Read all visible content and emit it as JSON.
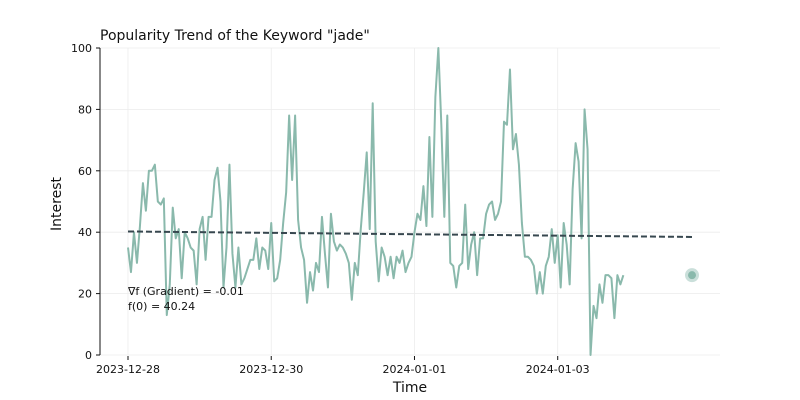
{
  "chart_data": {
    "type": "line",
    "title": "Popularity Trend of the Keyword \"jade\"",
    "xlabel": "Time",
    "ylabel": "Interest",
    "ylim": [
      0,
      100
    ],
    "yticks": [
      0,
      20,
      40,
      60,
      80,
      100
    ],
    "xlim": [
      "2023-12-28T00:00",
      "2024-01-04T21:00"
    ],
    "xticks": [
      {
        "t": "2023-12-28T00:00",
        "label": "2023-12-28"
      },
      {
        "t": "2023-12-30T00:00",
        "label": "2023-12-30"
      },
      {
        "t": "2024-01-01T00:00",
        "label": "2024-01-01"
      },
      {
        "t": "2024-01-03T00:00",
        "label": "2024-01-03"
      }
    ],
    "grid": true,
    "start": "2023-12-28T00:00",
    "step_hours": 1,
    "series": [
      {
        "values": [
          35,
          27,
          40,
          30,
          42,
          56,
          47,
          60,
          60,
          62,
          50,
          49,
          51,
          13,
          23,
          48,
          38,
          41,
          25,
          40,
          38,
          35,
          34,
          23,
          41,
          45,
          31,
          45,
          45,
          57,
          61,
          50,
          22,
          35,
          62,
          33,
          22,
          35,
          23,
          25,
          28,
          31,
          31,
          38,
          28,
          35,
          34,
          28,
          43,
          24,
          25,
          31,
          43,
          53,
          78,
          57,
          78,
          44,
          35,
          31,
          17,
          27,
          21,
          30,
          27,
          45,
          33,
          22,
          46,
          37,
          34,
          36,
          35,
          33,
          30,
          18,
          30,
          26,
          41,
          53,
          66,
          41,
          82,
          37,
          24,
          35,
          32,
          26,
          32,
          25,
          32,
          30,
          34,
          27,
          30,
          32,
          40,
          46,
          44,
          55,
          42,
          71,
          45,
          84,
          100,
          75,
          45,
          78,
          30,
          29,
          22,
          29,
          30,
          49,
          28,
          36,
          40,
          26,
          38,
          38,
          46,
          49,
          50,
          44,
          46,
          50,
          76,
          75,
          93,
          67,
          72,
          62,
          43,
          32,
          32,
          31,
          29,
          20,
          27,
          20,
          29,
          32,
          41,
          30,
          39,
          22,
          43,
          36,
          23,
          54,
          69,
          63,
          38,
          80,
          67,
          0,
          16,
          12,
          23,
          17,
          26,
          26,
          25,
          12,
          26,
          23,
          26
        ],
        "color": "#8ab9ac"
      },
      {
        "type": "trend",
        "x": [
          "2023-12-28T00:00",
          "2024-01-04T21:00"
        ],
        "values": [
          40.24,
          38.45
        ],
        "color": "#37474f"
      }
    ],
    "highlight_point": {
      "t": "2024-01-04T21:00",
      "value": 26
    },
    "annotations": [
      "∇f (Gradient) = -0.01",
      "f(0) = 40.24"
    ]
  }
}
